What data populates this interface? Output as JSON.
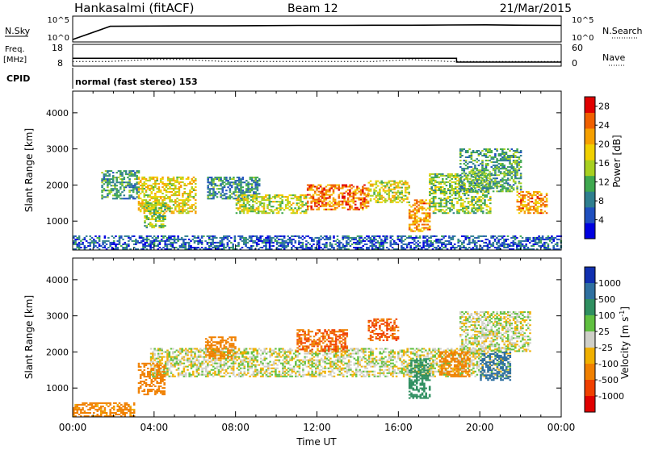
{
  "header": {
    "station": "Hankasalmi (fitACF)",
    "beam": "Beam 12",
    "date": "21/Mar/2015"
  },
  "status_panels": {
    "nsky_label": "N.Sky",
    "nsearch_label": "N.Search",
    "nsky_ticks": [
      "10^5",
      "10^0"
    ],
    "nsearch_ticks": [
      "10^5",
      "10^0"
    ],
    "freq_label_top": "Freq.",
    "freq_label_unit": "[MHz]",
    "freq_ticks": [
      "18",
      "8"
    ],
    "nave_ticks": [
      "60",
      "0"
    ],
    "nave_label": "Nave",
    "cpid_label": "CPID",
    "cpid_text": "normal (fast stereo) 153",
    "nsky_trace_log": [
      0.2,
      3.35,
      3.4,
      3.45,
      3.45,
      3.5,
      3.55,
      3.55,
      3.6,
      3.6,
      3.65,
      3.7,
      3.6,
      3.55
    ],
    "freq_mhz": [
      10,
      10,
      11,
      11,
      10,
      10,
      10,
      10,
      10,
      11,
      10,
      10,
      10,
      10
    ],
    "nave": [
      22,
      22,
      22,
      22,
      22,
      22,
      22,
      22,
      22,
      22,
      22,
      10,
      10,
      10
    ]
  },
  "chart_data": [
    {
      "type": "heatmap",
      "title": "",
      "xlabel": "",
      "ylabel": "Slant Range [km]",
      "x_range_hours": [
        0,
        24
      ],
      "ylim": [
        200,
        4600
      ],
      "yticks": [
        1000,
        2000,
        3000,
        4000
      ],
      "colorbar": {
        "label": "Power [dB]",
        "ticks": [
          "28",
          "24",
          "20",
          "16",
          "12",
          "8",
          "4"
        ],
        "range": [
          0,
          30
        ],
        "colors": [
          "#0000e0",
          "#1f4fbf",
          "#2f7f8f",
          "#3fa84f",
          "#a8d020",
          "#f0d000",
          "#f6a000",
          "#f06000",
          "#e00000"
        ]
      },
      "echo_bands": [
        {
          "t0": 1.4,
          "t1": 3.2,
          "r0": 1600,
          "r1": 2400,
          "value": 10
        },
        {
          "t0": 3.2,
          "t1": 6.0,
          "r0": 1200,
          "r1": 2200,
          "value": 18
        },
        {
          "t0": 3.5,
          "t1": 4.5,
          "r0": 800,
          "r1": 1500,
          "value": 14
        },
        {
          "t0": 6.6,
          "t1": 9.2,
          "r0": 1600,
          "r1": 2200,
          "value": 9
        },
        {
          "t0": 8.0,
          "t1": 11.5,
          "r0": 1200,
          "r1": 1700,
          "value": 16
        },
        {
          "t0": 11.5,
          "t1": 14.5,
          "r0": 1300,
          "r1": 2000,
          "value": 24
        },
        {
          "t0": 14.5,
          "t1": 16.5,
          "r0": 1500,
          "r1": 2100,
          "value": 17
        },
        {
          "t0": 16.5,
          "t1": 17.5,
          "r0": 700,
          "r1": 1600,
          "value": 22
        },
        {
          "t0": 17.5,
          "t1": 20.5,
          "r0": 1200,
          "r1": 2300,
          "value": 14
        },
        {
          "t0": 19.0,
          "t1": 22.0,
          "r0": 1800,
          "r1": 3000,
          "value": 11
        },
        {
          "t0": 21.8,
          "t1": 23.3,
          "r0": 1200,
          "r1": 1800,
          "value": 22
        },
        {
          "t0": 0.0,
          "t1": 24.0,
          "r0": 200,
          "r1": 600,
          "value": 6
        }
      ]
    },
    {
      "type": "heatmap",
      "title": "",
      "xlabel": "Time UT",
      "ylabel": "Slant Range [km]",
      "x_range_hours": [
        0,
        24
      ],
      "xtick_labels": [
        "00:00",
        "04:00",
        "08:00",
        "12:00",
        "16:00",
        "20:00",
        "00:00"
      ],
      "ylim": [
        200,
        4600
      ],
      "yticks": [
        1000,
        2000,
        3000,
        4000
      ],
      "colorbar": {
        "label": "Velocity [m s",
        "label_exp": "-1",
        "label_end": "]",
        "ticks": [
          "1000",
          "500",
          "100",
          "25",
          "-25",
          "-100",
          "-500",
          "-1000"
        ],
        "colors": [
          "#1030b0",
          "#2f70a0",
          "#2f8f60",
          "#60c040",
          "#cfcfc8",
          "#f0b000",
          "#f08000",
          "#f04000",
          "#e00000"
        ]
      },
      "echo_bands": [
        {
          "t0": 3.8,
          "t1": 21.5,
          "r0": 1300,
          "r1": 2100,
          "value": 0
        },
        {
          "t0": 19.0,
          "t1": 22.5,
          "r0": 2000,
          "r1": 3100,
          "value": 0
        },
        {
          "t0": 3.2,
          "t1": 4.5,
          "r0": 800,
          "r1": 1700,
          "value": -300
        },
        {
          "t0": 6.5,
          "t1": 8.0,
          "r0": 1800,
          "r1": 2400,
          "value": -300
        },
        {
          "t0": 11.0,
          "t1": 13.5,
          "r0": 2000,
          "r1": 2600,
          "value": -500
        },
        {
          "t0": 14.5,
          "t1": 16.0,
          "r0": 2300,
          "r1": 2900,
          "value": -500
        },
        {
          "t0": 16.5,
          "t1": 17.5,
          "r0": 700,
          "r1": 1800,
          "value": 200
        },
        {
          "t0": 18.0,
          "t1": 19.5,
          "r0": 1300,
          "r1": 2000,
          "value": -300
        },
        {
          "t0": 20.0,
          "t1": 21.5,
          "r0": 1200,
          "r1": 2000,
          "value": 600
        },
        {
          "t0": 0.0,
          "t1": 3.0,
          "r0": 200,
          "r1": 600,
          "value": -150
        }
      ]
    }
  ]
}
